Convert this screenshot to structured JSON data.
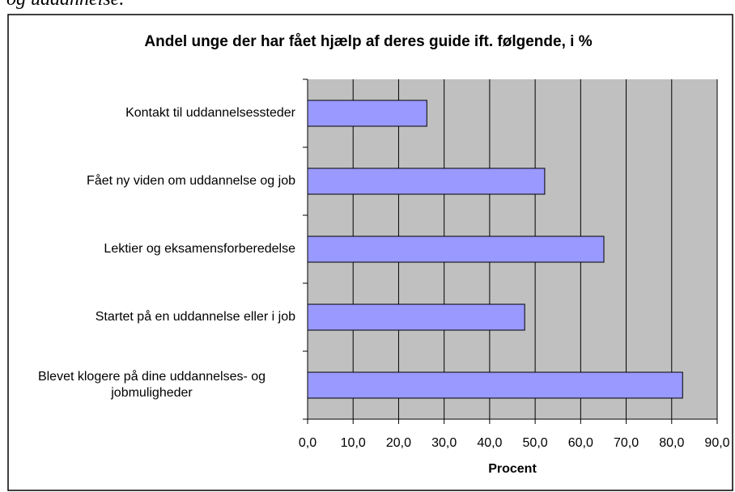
{
  "header": {
    "text": "og uddannelse."
  },
  "chart_data": {
    "type": "bar",
    "orientation": "horizontal",
    "title": "Andel unge der har fået hjælp af deres guide ift. følgende, i %",
    "x_label": "Procent",
    "categories": [
      "Kontakt til uddannelsessteder",
      "Fået ny viden om uddannelse og job",
      "Lektier og eksamensforberedelse",
      "Startet på en uddannelse eller i job",
      "Blevet klogere på dine uddannelses- og jobmuligheder"
    ],
    "values": [
      26.2,
      52.1,
      65.1,
      47.7,
      82.4
    ],
    "color": "#9999ff",
    "xlim": [
      0,
      90
    ],
    "xticks": [
      {
        "value": 0,
        "label": "0,0"
      },
      {
        "value": 10,
        "label": "10,0"
      },
      {
        "value": 20,
        "label": "20,0"
      },
      {
        "value": 30,
        "label": "30,0"
      },
      {
        "value": 40,
        "label": "40,0"
      },
      {
        "value": 50,
        "label": "50,0"
      },
      {
        "value": 60,
        "label": "60,0"
      },
      {
        "value": 70,
        "label": "70,0"
      },
      {
        "value": 80,
        "label": "80,0"
      },
      {
        "value": 90,
        "label": "90,0"
      }
    ],
    "grid": true
  }
}
